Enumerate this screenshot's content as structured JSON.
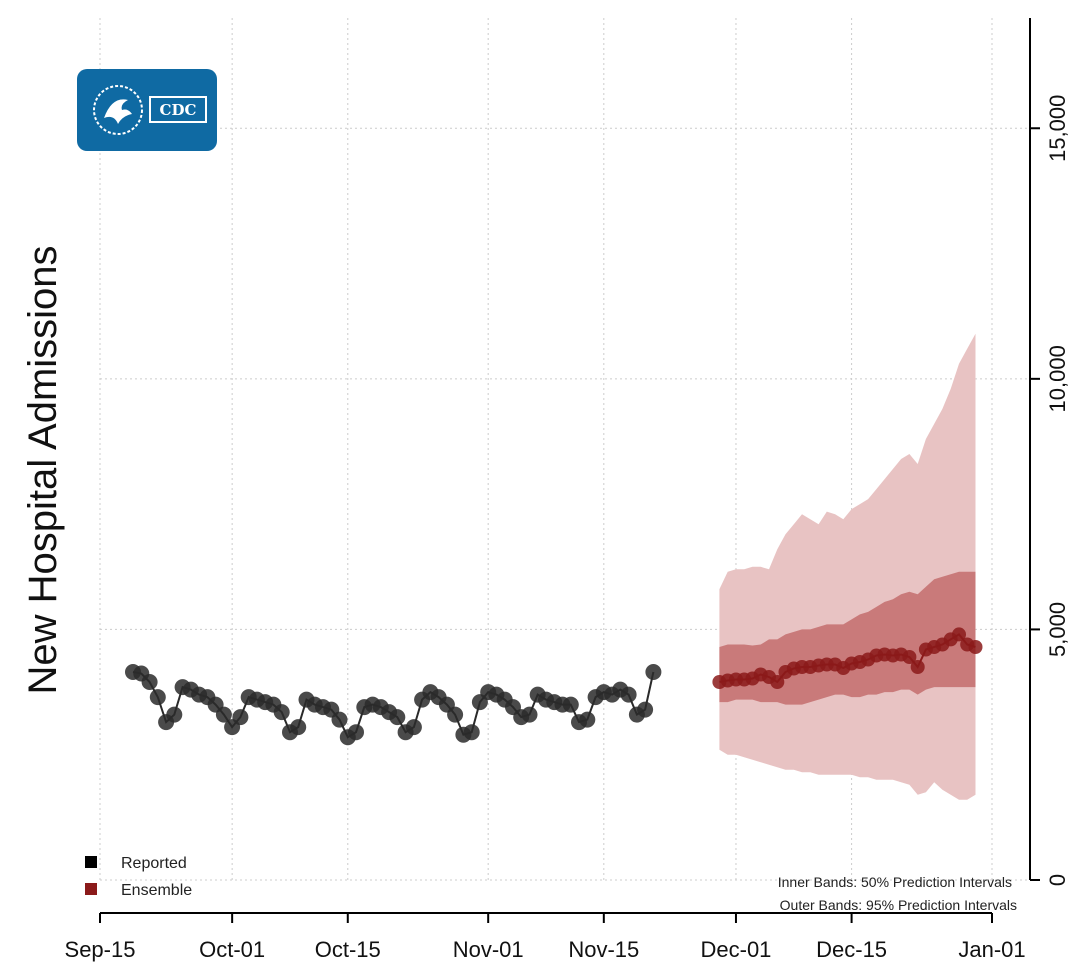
{
  "chart_data": {
    "type": "line",
    "ylabel": "New Hospital Admissions",
    "ylim": [
      0,
      17200
    ],
    "yticks": [
      "0",
      "5,000",
      "10,000",
      "15,000"
    ],
    "ytick_values": [
      0,
      5000,
      10000,
      15000
    ],
    "x_range": [
      "2023-09-15",
      "2024-01-01"
    ],
    "xticks": [
      {
        "label": "Sep-15",
        "date": "2023-09-15"
      },
      {
        "label": "Oct-01",
        "date": "2023-10-01"
      },
      {
        "label": "Oct-15",
        "date": "2023-10-15"
      },
      {
        "label": "Nov-01",
        "date": "2023-11-01"
      },
      {
        "label": "Nov-15",
        "date": "2023-11-15"
      },
      {
        "label": "Dec-01",
        "date": "2023-12-01"
      },
      {
        "label": "Dec-15",
        "date": "2023-12-15"
      },
      {
        "label": "Jan-01",
        "date": "2024-01-01"
      }
    ],
    "grid": true,
    "legend_position": "bottom-left",
    "colors": {
      "reported": "#1a1a1a",
      "ensemble": "#8b1a1a",
      "band_inner": "#c97a7a",
      "band_outer": "#e8c3c3"
    },
    "series": [
      {
        "name": "Reported",
        "start_date": "2023-09-19",
        "values": [
          4150,
          4120,
          3950,
          3650,
          3150,
          3300,
          3850,
          3800,
          3700,
          3650,
          3500,
          3300,
          3050,
          3250,
          3650,
          3600,
          3550,
          3500,
          3350,
          2950,
          3050,
          3600,
          3500,
          3450,
          3400,
          3200,
          2850,
          2950,
          3450,
          3500,
          3450,
          3350,
          3250,
          2950,
          3050,
          3600,
          3750,
          3650,
          3500,
          3300,
          2900,
          2950,
          3550,
          3750,
          3700,
          3600,
          3450,
          3250,
          3300,
          3700,
          3600,
          3550,
          3500,
          3500,
          3150,
          3200,
          3650,
          3750,
          3700,
          3800,
          3700,
          3300,
          3400,
          4150
        ]
      },
      {
        "name": "Ensemble",
        "start_date": "2023-11-29",
        "values": [
          3950,
          3980,
          4000,
          4000,
          4020,
          4100,
          4050,
          3950,
          4150,
          4220,
          4250,
          4250,
          4280,
          4300,
          4300,
          4230,
          4320,
          4350,
          4400,
          4480,
          4500,
          4480,
          4500,
          4450,
          4250,
          4600,
          4650,
          4700,
          4800,
          4900,
          4700,
          4650
        ]
      }
    ],
    "bands": {
      "start_date": "2023-11-29",
      "outer_upper": [
        5800,
        6150,
        6200,
        6200,
        6250,
        6250,
        6200,
        6600,
        6900,
        7100,
        7300,
        7200,
        7100,
        7350,
        7300,
        7200,
        7400,
        7500,
        7600,
        7800,
        8000,
        8200,
        8400,
        8500,
        8300,
        8800,
        9100,
        9400,
        9800,
        10300,
        10600,
        10900
      ],
      "outer_lower": [
        2600,
        2500,
        2500,
        2450,
        2400,
        2350,
        2300,
        2250,
        2200,
        2200,
        2150,
        2150,
        2100,
        2100,
        2100,
        2100,
        2100,
        2050,
        2050,
        2000,
        2000,
        2000,
        1950,
        1900,
        1700,
        1750,
        1950,
        1800,
        1700,
        1600,
        1600,
        1700
      ],
      "inner_upper": [
        4650,
        4700,
        4700,
        4700,
        4680,
        4700,
        4800,
        4800,
        4900,
        4950,
        5000,
        5000,
        5050,
        5100,
        5100,
        5100,
        5200,
        5300,
        5350,
        5450,
        5550,
        5600,
        5700,
        5750,
        5700,
        5850,
        6000,
        6050,
        6100,
        6150,
        6150,
        6150
      ],
      "inner_lower": [
        3550,
        3550,
        3600,
        3600,
        3600,
        3550,
        3550,
        3550,
        3500,
        3500,
        3500,
        3550,
        3600,
        3650,
        3700,
        3700,
        3650,
        3650,
        3700,
        3700,
        3750,
        3750,
        3800,
        3800,
        3700,
        3800,
        3850,
        3850,
        3850,
        3850,
        3850,
        3850
      ]
    },
    "legend": [
      {
        "label": "Reported"
      },
      {
        "label": "Ensemble"
      }
    ],
    "notes": [
      "Inner Bands: 50% Prediction Intervals",
      "Outer Bands: 95% Prediction Intervals"
    ]
  },
  "logo": {
    "text": "CDC"
  }
}
